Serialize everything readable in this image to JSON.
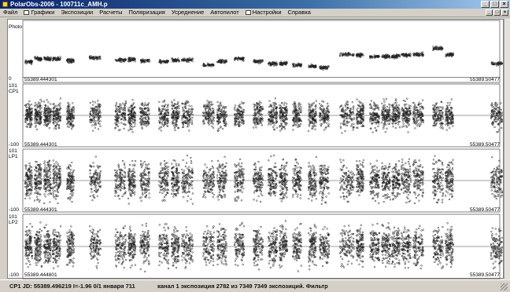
{
  "window": {
    "title": "PolarObs-2006 - 100711c_AMH.p",
    "icon": "app-icon",
    "controls": [
      "_",
      "□",
      "×"
    ]
  },
  "menu": {
    "items": [
      {
        "label": "Файл",
        "icon": ""
      },
      {
        "label": "Графики",
        "icon": "chart-icon"
      },
      {
        "label": "Экспозиции",
        "icon": ""
      },
      {
        "label": "Расчеты",
        "icon": ""
      },
      {
        "label": "Поляризация",
        "icon": ""
      },
      {
        "label": "Усреднение",
        "icon": ""
      },
      {
        "label": "Автопилот",
        "icon": ""
      },
      {
        "label": "Настройки",
        "icon": "settings-icon"
      },
      {
        "label": "Справка",
        "icon": ""
      }
    ],
    "mdi_controls": [
      "_",
      "□",
      "×"
    ]
  },
  "panels": [
    {
      "id": "photo",
      "name": "Photo",
      "ymax": "",
      "ymin": "0",
      "x_start": "55389.444301",
      "x_end": "55389.50477"
    },
    {
      "id": "cp1",
      "name": "CP1",
      "ymax": "101",
      "ymin": "-100",
      "x_start": "55389.444301",
      "x_end": "55389.50477"
    },
    {
      "id": "lp1",
      "name": "LP1",
      "ymax": "101",
      "ymin": "-100",
      "x_start": "55389.444301",
      "x_end": "55389.50477"
    },
    {
      "id": "lp2",
      "name": "LP2",
      "ymax": "101",
      "ymin": "-100",
      "x_start": "55389.444801",
      "x_end": "55389.50477"
    }
  ],
  "status": {
    "left": "CP1 JD: 55389.496219   I=-1.96  0/1 января 711",
    "right": "канал 1 экспозиция 2782 из 7349   7349 экспозиций. Фильтр"
  },
  "colors": {
    "points": "#202020",
    "zero_line": "#404040",
    "panel_border": "#606060",
    "titlebar": "#0a246a"
  }
}
